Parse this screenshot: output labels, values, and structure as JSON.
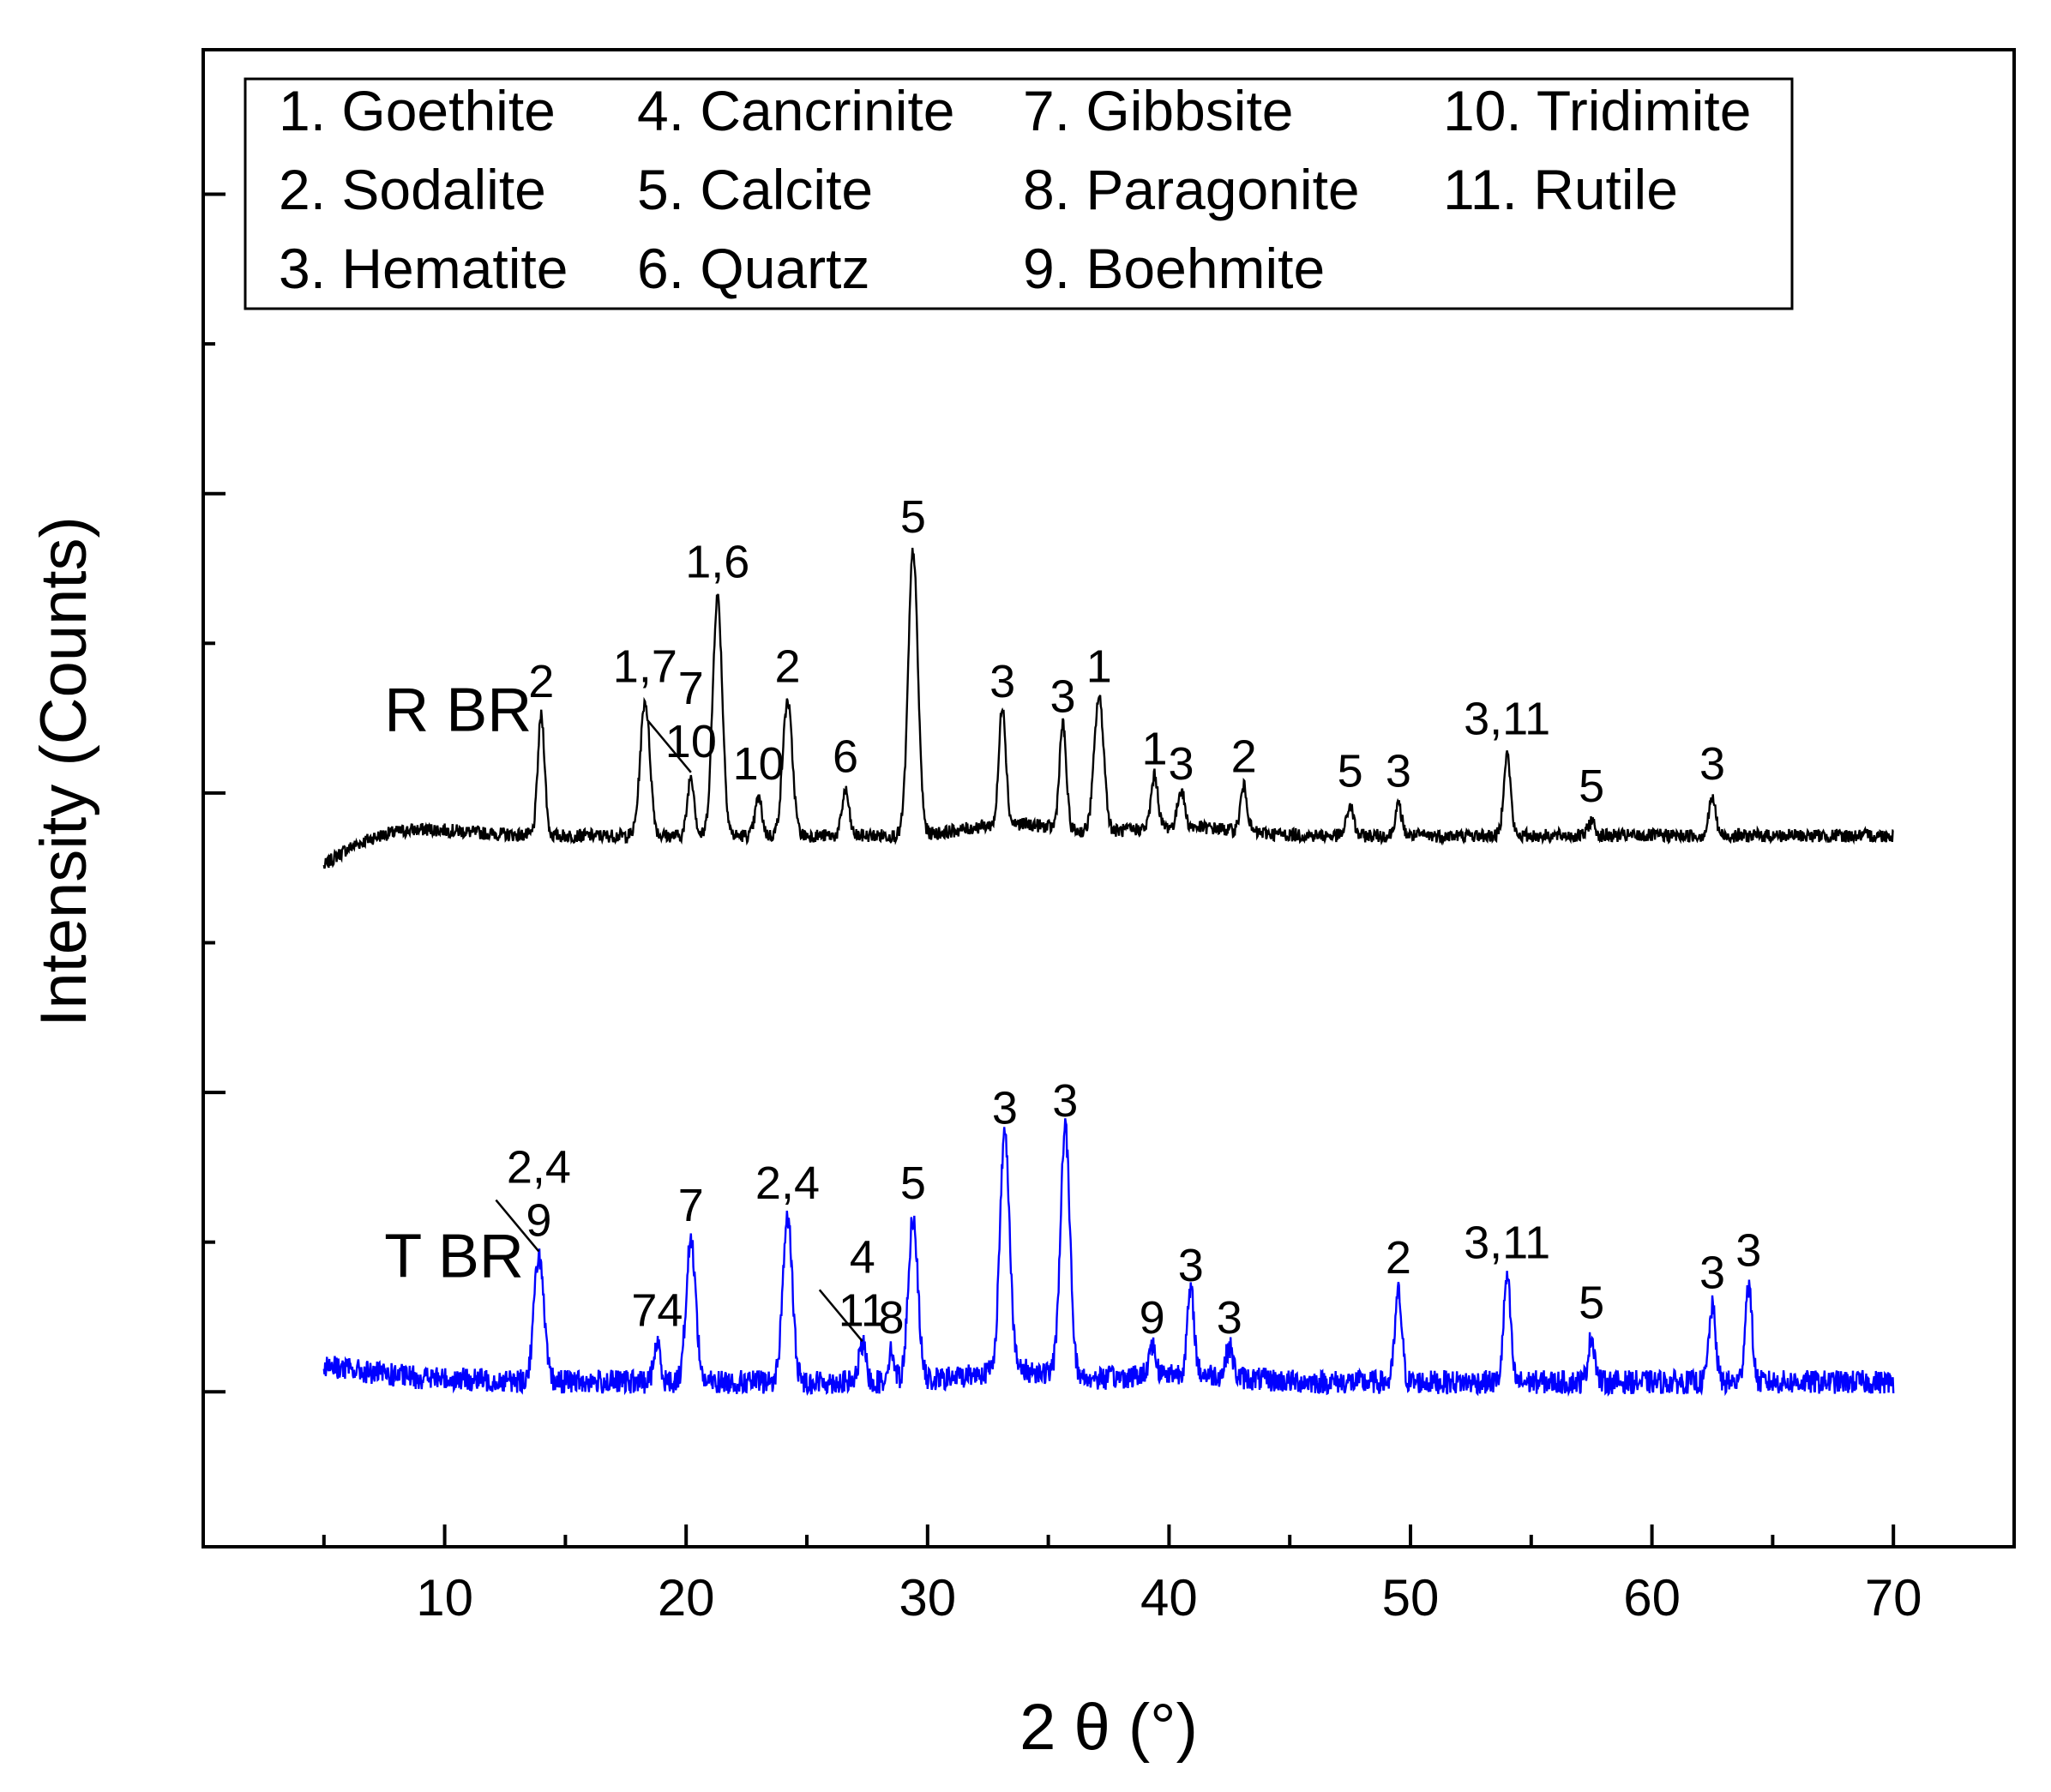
{
  "chart_data": {
    "type": "line",
    "xlabel": "2 θ (°)",
    "ylabel": "Intensity (Counts)",
    "xlim": [
      0,
      75
    ],
    "ylim": [
      0,
      100
    ],
    "x_ticks": [
      10,
      20,
      30,
      40,
      50,
      60,
      70
    ],
    "x_tick_labels": [
      "10",
      "20",
      "30",
      "40",
      "50",
      "60",
      "70"
    ],
    "y_tick_labels_shown": false,
    "legend": {
      "placement": "top-left",
      "items": [
        "1. Goethite",
        "2. Sodalite",
        "3. Hematite",
        "4. Cancrinite",
        "5. Calcite",
        "6. Quartz",
        "7. Gibbsite",
        "8. Paragonite",
        "9. Boehmite",
        "10. Tridimite",
        "11. Rutile"
      ]
    },
    "series": [
      {
        "name": "R BR",
        "color": "#000000",
        "x_range": [
          5,
          70
        ],
        "baseline": 47.5,
        "peaks": [
          {
            "x": 14.0,
            "y": 55.5,
            "label": "2"
          },
          {
            "x": 18.3,
            "y": 56.5,
            "label": "1,7"
          },
          {
            "x": 20.2,
            "y": 51.5,
            "label": "7\n10"
          },
          {
            "x": 21.3,
            "y": 63.5,
            "label": "1,6"
          },
          {
            "x": 23.0,
            "y": 50.0,
            "label": "10"
          },
          {
            "x": 24.2,
            "y": 56.5,
            "label": "2"
          },
          {
            "x": 26.6,
            "y": 50.5,
            "label": "6"
          },
          {
            "x": 29.4,
            "y": 66.5,
            "label": "5"
          },
          {
            "x": 33.1,
            "y": 55.5,
            "label": "3"
          },
          {
            "x": 35.6,
            "y": 54.5,
            "label": "3"
          },
          {
            "x": 37.1,
            "y": 56.5,
            "label": "1"
          },
          {
            "x": 39.4,
            "y": 51.0,
            "label": "1"
          },
          {
            "x": 40.5,
            "y": 50.0,
            "label": "3"
          },
          {
            "x": 43.1,
            "y": 50.5,
            "label": "2"
          },
          {
            "x": 47.5,
            "y": 49.5,
            "label": "5"
          },
          {
            "x": 49.5,
            "y": 49.5,
            "label": "3"
          },
          {
            "x": 54.0,
            "y": 53.0,
            "label": "3,11"
          },
          {
            "x": 57.5,
            "y": 48.5,
            "label": "5"
          },
          {
            "x": 62.5,
            "y": 50.0,
            "label": "3"
          }
        ]
      },
      {
        "name": "T BR",
        "color": "#0000ff",
        "x_range": [
          5,
          70
        ],
        "baseline": 11.0,
        "peaks": [
          {
            "x": 13.9,
            "y": 19.5,
            "label": "2,4\n9"
          },
          {
            "x": 18.8,
            "y": 13.5,
            "label": "74"
          },
          {
            "x": 20.2,
            "y": 20.5,
            "label": "7"
          },
          {
            "x": 24.2,
            "y": 22.0,
            "label": "2,4"
          },
          {
            "x": 27.3,
            "y": 13.5,
            "label": "4\n11"
          },
          {
            "x": 28.5,
            "y": 13.0,
            "label": "8"
          },
          {
            "x": 29.4,
            "y": 22.0,
            "label": "5"
          },
          {
            "x": 33.2,
            "y": 27.0,
            "label": "3"
          },
          {
            "x": 35.7,
            "y": 27.5,
            "label": "3"
          },
          {
            "x": 39.3,
            "y": 13.0,
            "label": "9"
          },
          {
            "x": 40.9,
            "y": 16.5,
            "label": "3"
          },
          {
            "x": 42.5,
            "y": 13.0,
            "label": "3"
          },
          {
            "x": 49.5,
            "y": 17.0,
            "label": "2"
          },
          {
            "x": 54.0,
            "y": 18.0,
            "label": "3,11"
          },
          {
            "x": 57.5,
            "y": 14.0,
            "label": "5"
          },
          {
            "x": 62.5,
            "y": 16.0,
            "label": "3"
          },
          {
            "x": 64.0,
            "y": 17.5,
            "label": "3"
          }
        ]
      }
    ]
  }
}
